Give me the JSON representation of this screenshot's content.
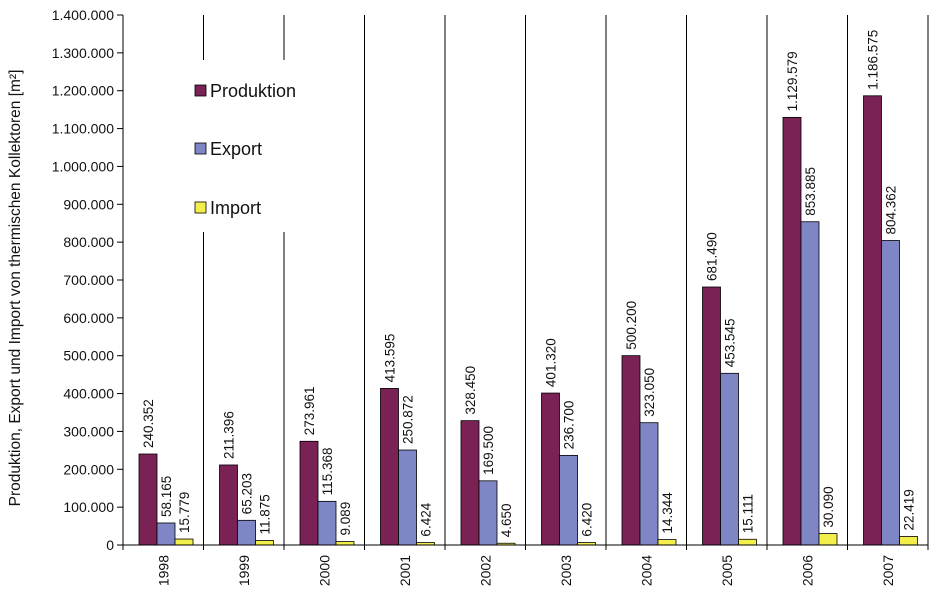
{
  "chart_data": {
    "type": "bar",
    "title": "",
    "xlabel": "",
    "ylabel": "Produktion, Export und Import von thermischen Kollektoren [m²]",
    "categories": [
      "1998",
      "1999",
      "2000",
      "2001",
      "2002",
      "2003",
      "2004",
      "2005",
      "2006",
      "2007"
    ],
    "series": [
      {
        "name": "Produktion",
        "color": "#7A2256",
        "values": [
          240352,
          211396,
          273961,
          413595,
          328450,
          401320,
          500200,
          681490,
          1129579,
          1186575
        ],
        "labels": [
          "240.352",
          "211.396",
          "273.961",
          "413.595",
          "328.450",
          "401.320",
          "500.200",
          "681.490",
          "1.129.579",
          "1.186.575"
        ]
      },
      {
        "name": "Export",
        "color": "#7F86C6",
        "values": [
          58165,
          65203,
          115368,
          250872,
          169500,
          236700,
          323050,
          453545,
          853885,
          804362
        ],
        "labels": [
          "58.165",
          "65.203",
          "115.368",
          "250.872",
          "169.500",
          "236.700",
          "323.050",
          "453.545",
          "853.885",
          "804.362"
        ]
      },
      {
        "name": "Import",
        "color": "#F2EE4A",
        "values": [
          15779,
          11875,
          9089,
          6424,
          4650,
          6420,
          14344,
          15111,
          30090,
          22419
        ],
        "labels": [
          "15.779",
          "11.875",
          "9.089",
          "6.424",
          "4.650",
          "6.420",
          "14.344",
          "15.111",
          "30.090",
          "22.419"
        ]
      }
    ],
    "ylim": [
      0,
      1400000
    ],
    "yticks": [
      0,
      100000,
      200000,
      300000,
      400000,
      500000,
      600000,
      700000,
      800000,
      900000,
      1000000,
      1100000,
      1200000,
      1300000,
      1400000
    ],
    "ytick_labels": [
      "0",
      "100.000",
      "200.000",
      "300.000",
      "400.000",
      "500.000",
      "600.000",
      "700.000",
      "800.000",
      "900.000",
      "1.000.000",
      "1.100.000",
      "1.200.000",
      "1.300.000",
      "1.400.000"
    ],
    "legend": {
      "placement": "upper-left",
      "entries": [
        "Produktion",
        "Export",
        "Import"
      ]
    },
    "grid": false,
    "category_separators": true
  }
}
